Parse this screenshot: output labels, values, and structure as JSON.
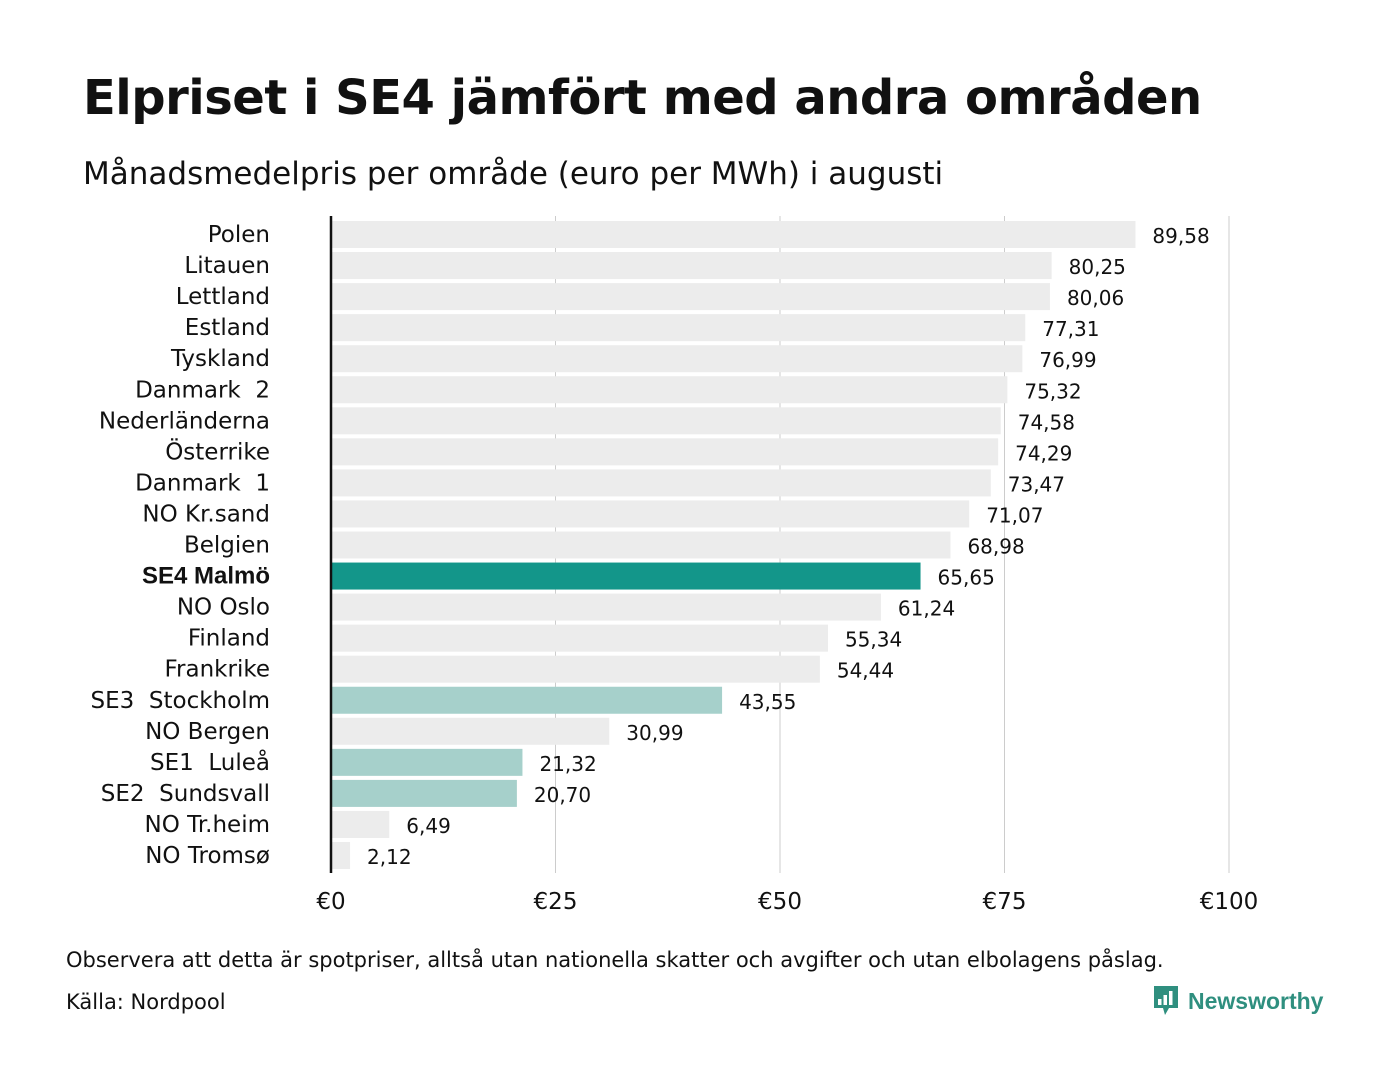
{
  "header": {
    "title": "Elpriset i SE4 jämfört med andra områden",
    "subtitle": "Månadsmedelpris per område (euro per MWh) i augusti"
  },
  "footer": {
    "note": "Observera att detta är spotpriser, alltså utan nationella skatter och avgifter och utan elbolagens påslag.",
    "source": "Källa: Nordpool",
    "brand": "Newsworthy",
    "brand_icon": "bar-chart-speech-bubble-icon"
  },
  "chart_data": {
    "type": "bar",
    "orientation": "horizontal",
    "categories": [
      "Polen",
      "Litauen",
      "Lettland",
      "Estland",
      "Tyskland",
      "Danmark  2",
      "Nederländerna",
      "Österrike",
      "Danmark  1",
      "NO Kr.sand",
      "Belgien",
      "SE4 Malmö",
      "NO Oslo",
      "Finland",
      "Frankrike",
      "SE3  Stockholm",
      "NO Bergen",
      "SE1  Luleå",
      "SE2  Sundsvall",
      "NO Tr.heim",
      "NO Tromsø"
    ],
    "values": [
      89.58,
      80.25,
      80.06,
      77.31,
      76.99,
      75.32,
      74.58,
      74.29,
      73.47,
      71.07,
      68.98,
      65.65,
      61.24,
      55.34,
      54.44,
      43.55,
      30.99,
      21.32,
      20.7,
      6.49,
      2.12
    ],
    "value_labels": [
      "89,58",
      "80,25",
      "80,06",
      "77,31",
      "76,99",
      "75,32",
      "74,58",
      "74,29",
      "73,47",
      "71,07",
      "68,98",
      "65,65",
      "61,24",
      "55,34",
      "54,44",
      "43,55",
      "30,99",
      "21,32",
      "20,70",
      "6,49",
      "2,12"
    ],
    "highlight": "SE4 Malmö",
    "swedish_areas": [
      "SE3  Stockholm",
      "SE1  Luleå",
      "SE2  Sundsvall"
    ],
    "xlim": [
      0,
      100
    ],
    "xticks": [
      0,
      25,
      50,
      75,
      100
    ],
    "xtick_labels": [
      "€0",
      "€25",
      "€50",
      "€75",
      "€100"
    ],
    "grid": true,
    "colors": {
      "highlight": "#13968a",
      "swedish": "#a6d0cb",
      "other": "#ececec",
      "grid": "#cccccc",
      "axis": "#111111"
    }
  }
}
